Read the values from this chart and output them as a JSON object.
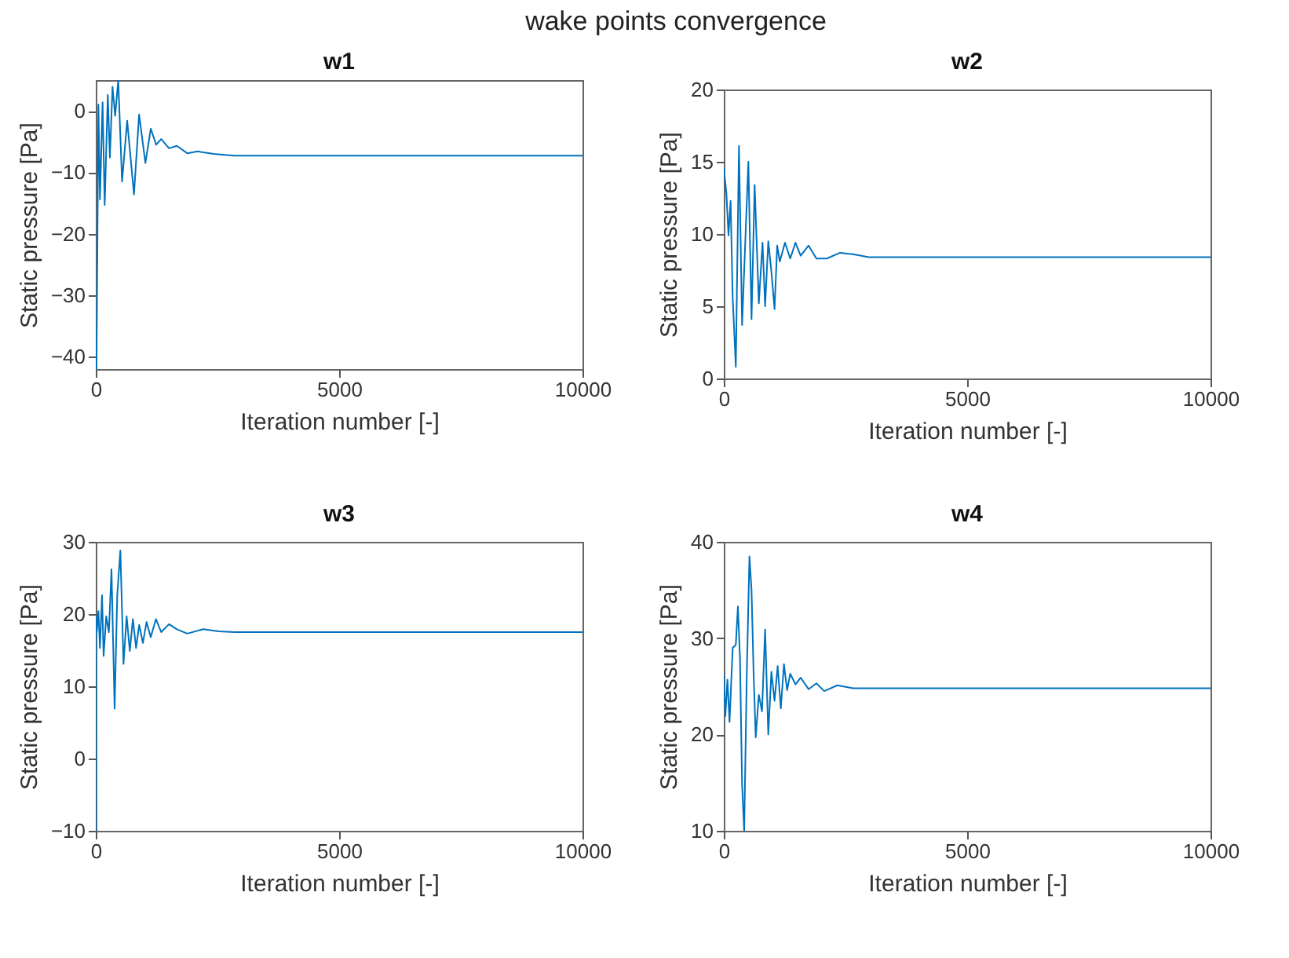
{
  "chart_data": [
    {
      "type": "line",
      "title": "w1",
      "annotations": [
        "wake points convergence"
      ],
      "xlabel": "Iteration number [-]",
      "ylabel": "Static pressure [Pa]",
      "xlim": [
        0,
        10000
      ],
      "xticks": [
        0,
        5000,
        10000
      ],
      "ylim": [
        -42,
        5
      ],
      "yticks": [
        -40,
        -30,
        -20,
        -10,
        0
      ],
      "series": [
        {
          "color": "#0072bd",
          "x": [
            0,
            15,
            54,
            86,
            140,
            183,
            247,
            290,
            344,
            398,
            462,
            540,
            645,
            785,
            890,
            1020,
            1130,
            1240,
            1345,
            1505,
            1665,
            1880,
            2095,
            2420,
            2850,
            10000
          ],
          "values": [
            -38,
            -42,
            1,
            -14.4,
            1.4,
            -15.3,
            2.6,
            -7.6,
            3.9,
            -0.8,
            5,
            -11.5,
            -1.6,
            -13.6,
            -0.6,
            -8.5,
            -2.9,
            -5.5,
            -4.6,
            -6.1,
            -5.7,
            -6.9,
            -6.6,
            -7,
            -7.3,
            -7.3
          ]
        }
      ]
    },
    {
      "type": "line",
      "title": "w2",
      "xlabel": "Iteration number [-]",
      "ylabel": "Static pressure [Pa]",
      "xlim": [
        0,
        10000
      ],
      "xticks": [
        0,
        5000,
        10000
      ],
      "ylim": [
        0,
        20
      ],
      "yticks": [
        0,
        5,
        10,
        15,
        20
      ],
      "series": [
        {
          "color": "#0072bd",
          "x": [
            0,
            54,
            97,
            140,
            183,
            247,
            312,
            376,
            451,
            505,
            570,
            634,
            720,
            796,
            849,
            914,
            978,
            1043,
            1097,
            1150,
            1258,
            1365,
            1473,
            1580,
            1742,
            1903,
            2118,
            2386,
            2655,
            2978,
            10000
          ],
          "values": [
            14.6,
            12.8,
            9.9,
            12.3,
            5.6,
            0.8,
            16.1,
            3.7,
            10.3,
            15,
            4.1,
            13.4,
            5.2,
            9.4,
            5,
            9.5,
            7.4,
            4.8,
            9.2,
            8.1,
            9.4,
            8.3,
            9.4,
            8.5,
            9.2,
            8.3,
            8.3,
            8.7,
            8.6,
            8.4,
            8.4
          ]
        }
      ]
    },
    {
      "type": "line",
      "title": "w3",
      "xlabel": "Iteration number [-]",
      "ylabel": "Static pressure [Pa]",
      "xlim": [
        0,
        10000
      ],
      "xticks": [
        0,
        5000,
        10000
      ],
      "ylim": [
        -10,
        30
      ],
      "yticks": [
        -10,
        0,
        10,
        20,
        30
      ],
      "series": [
        {
          "color": "#0072bd",
          "x": [
            0,
            5,
            21,
            54,
            86,
            129,
            161,
            215,
            269,
            323,
            387,
            441,
            505,
            570,
            634,
            699,
            763,
            828,
            892,
            968,
            1043,
            1129,
            1236,
            1344,
            1505,
            1666,
            1881,
            2204,
            2526,
            2849,
            10000
          ],
          "values": [
            -10,
            19.7,
            17.5,
            20.4,
            15.3,
            22.6,
            14.2,
            19.7,
            17.5,
            26.2,
            6.9,
            22.6,
            28.8,
            13.1,
            19.7,
            14.9,
            19.3,
            15.3,
            18.5,
            16,
            18.9,
            16.8,
            19.3,
            17.5,
            18.6,
            17.9,
            17.3,
            17.9,
            17.6,
            17.5,
            17.5
          ]
        }
      ]
    },
    {
      "type": "line",
      "title": "w4",
      "xlabel": "Iteration number [-]",
      "ylabel": "Static pressure [Pa]",
      "xlim": [
        0,
        10000
      ],
      "xticks": [
        0,
        5000,
        10000
      ],
      "ylim": [
        10,
        40
      ],
      "yticks": [
        10,
        20,
        30,
        40
      ],
      "series": [
        {
          "color": "#0072bd",
          "x": [
            0,
            32,
            75,
            118,
            183,
            247,
            290,
            333,
            376,
            419,
            473,
            527,
            570,
            613,
            656,
            720,
            785,
            849,
            914,
            978,
            1043,
            1107,
            1172,
            1236,
            1301,
            1365,
            1473,
            1580,
            1742,
            1903,
            2064,
            2333,
            2655,
            10000
          ],
          "values": [
            26.3,
            21.9,
            25.7,
            21.3,
            29,
            29.3,
            33.3,
            27.9,
            14.8,
            10,
            26.3,
            38.5,
            35,
            26.3,
            19.7,
            24.1,
            22.4,
            30.9,
            20,
            26.5,
            23.5,
            27.1,
            22.7,
            27.3,
            24.6,
            26.3,
            25.2,
            25.9,
            24.7,
            25.3,
            24.5,
            25.1,
            24.8,
            24.8
          ]
        }
      ]
    }
  ]
}
